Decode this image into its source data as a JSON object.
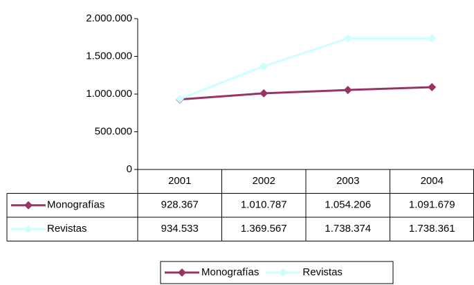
{
  "chart_data": {
    "type": "line",
    "categories": [
      "2001",
      "2002",
      "2003",
      "2004"
    ],
    "series": [
      {
        "name": "Monografías",
        "color": "#993366",
        "values": [
          928367,
          1010787,
          1054206,
          1091679
        ],
        "value_labels": [
          "928.367",
          "1.010.787",
          "1.054.206",
          "1.091.679"
        ]
      },
      {
        "name": "Revistas",
        "color": "#ccffff",
        "values": [
          934533,
          1369567,
          1738374,
          1738361
        ],
        "value_labels": [
          "934.533",
          "1.369.567",
          "1.738.374",
          "1.738.361"
        ]
      }
    ],
    "ylim": [
      0,
      2000000
    ],
    "yticks": [
      0,
      {
        "value": 500000,
        "label": "500.000"
      },
      {
        "value": 1000000,
        "label": "1.000.000"
      },
      {
        "value": 1500000,
        "label": "1.500.000"
      },
      {
        "value": 2000000,
        "label": "2.000.000"
      }
    ],
    "grid": false,
    "legend": "bottom",
    "data_table": true
  }
}
